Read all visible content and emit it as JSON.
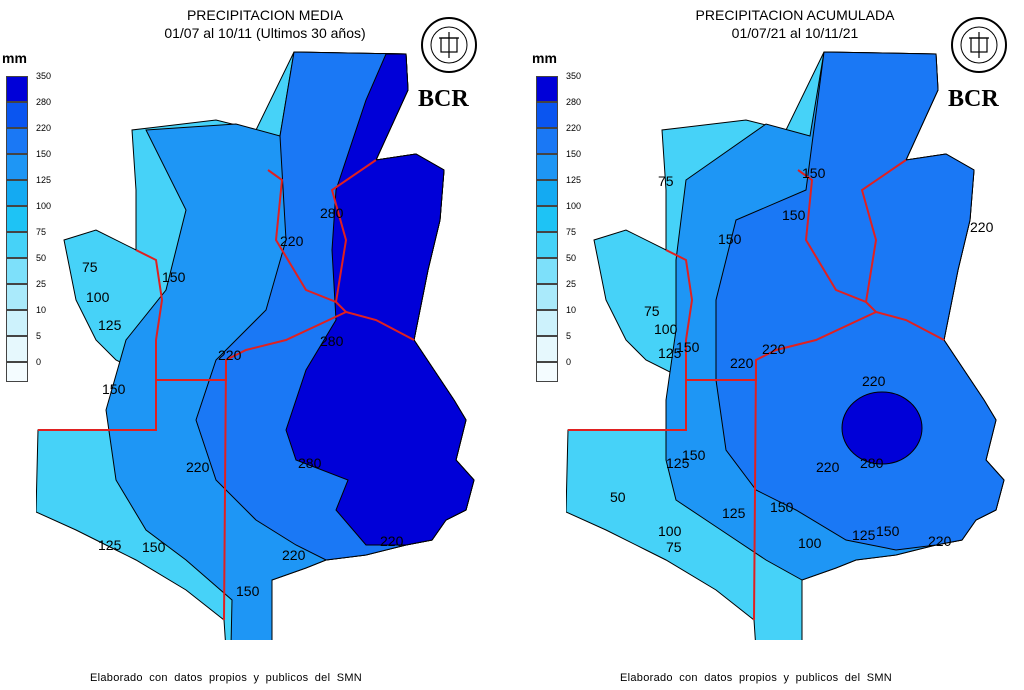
{
  "legend": {
    "unit": "mm",
    "levels": [
      "350",
      "280",
      "220",
      "150",
      "125",
      "100",
      "75",
      "50",
      "25",
      "10",
      "5",
      "0"
    ],
    "colors": [
      "#0000d8",
      "#0a55f0",
      "#1a78f5",
      "#1e96f5",
      "#14aaf2",
      "#1ec3f5",
      "#46d2f8",
      "#7de0fa",
      "#aaeafb",
      "#cdf2fc",
      "#e6f8fd",
      "#f4fcff"
    ]
  },
  "brand": "BCR",
  "seal_text": "BOLSA DE COMERCIO DE ROSARIO",
  "left": {
    "title_line1": "PRECIPITACION MEDIA",
    "title_line2": "01/07 al 10/11 (Ultimos 30 años)",
    "footer": "Elaborado con datos propios y publicos del SMN",
    "contour_labels": [
      "75",
      "100",
      "125",
      "150",
      "150",
      "220",
      "220",
      "280",
      "280",
      "220",
      "280",
      "125",
      "150",
      "220",
      "150",
      "220"
    ]
  },
  "right": {
    "title_line1": "PRECIPITACION ACUMULADA",
    "title_line2": "01/07/21 al 10/11/21",
    "footer": "Elaborado con datos propios y publicos del SMN",
    "contour_labels": [
      "75",
      "150",
      "150",
      "150",
      "75",
      "100",
      "125",
      "150",
      "220",
      "220",
      "220",
      "220",
      "280",
      "125",
      "150",
      "50",
      "100",
      "125",
      "150",
      "75",
      "100",
      "125",
      "150",
      "220",
      "220"
    ]
  }
}
